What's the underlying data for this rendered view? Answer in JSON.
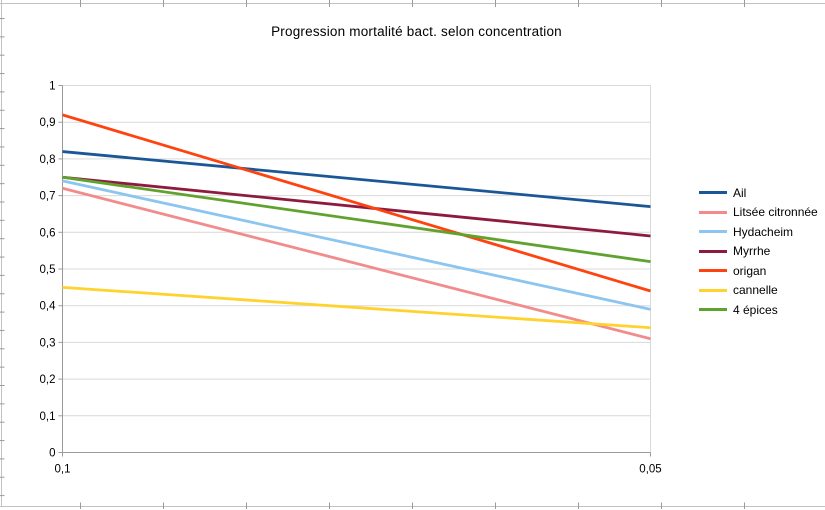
{
  "chart_data": {
    "type": "line",
    "title": "Progression mortalité bact. selon concentration",
    "xlabel": "",
    "ylabel": "",
    "x_categories": [
      "0,1",
      "0,05"
    ],
    "y_tick_labels": [
      "1",
      "0,9",
      "0,8",
      "0,7",
      "0,6",
      "0,5",
      "0,4",
      "0,3",
      "0,2",
      "0,1",
      "0"
    ],
    "ylim": [
      0,
      1
    ],
    "grid": "horizontal",
    "legend_position": "right",
    "series": [
      {
        "name": "Ail",
        "color": "#1A5796",
        "values": [
          0.82,
          0.67
        ]
      },
      {
        "name": "Litsée citronnée",
        "color": "#F28C8C",
        "values": [
          0.72,
          0.31
        ]
      },
      {
        "name": "Hydacheim",
        "color": "#8CC5F0",
        "values": [
          0.74,
          0.39
        ]
      },
      {
        "name": "Myrrhe",
        "color": "#8E1B3D",
        "values": [
          0.75,
          0.59
        ]
      },
      {
        "name": "origan",
        "color": "#FF4310",
        "values": [
          0.92,
          0.44
        ]
      },
      {
        "name": "cannelle",
        "color": "#FFD22E",
        "values": [
          0.45,
          0.34
        ]
      },
      {
        "name": "4 épices",
        "color": "#5FA22D",
        "values": [
          0.75,
          0.52
        ]
      }
    ],
    "colors": {
      "gridline": "#d9d9d9",
      "axis": "#9a9a9a",
      "text": "#000000",
      "sheet_edge_line": "#c2c2c2",
      "sheet_edge_tick": "#9a9a9a",
      "background": "#ffffff"
    }
  }
}
